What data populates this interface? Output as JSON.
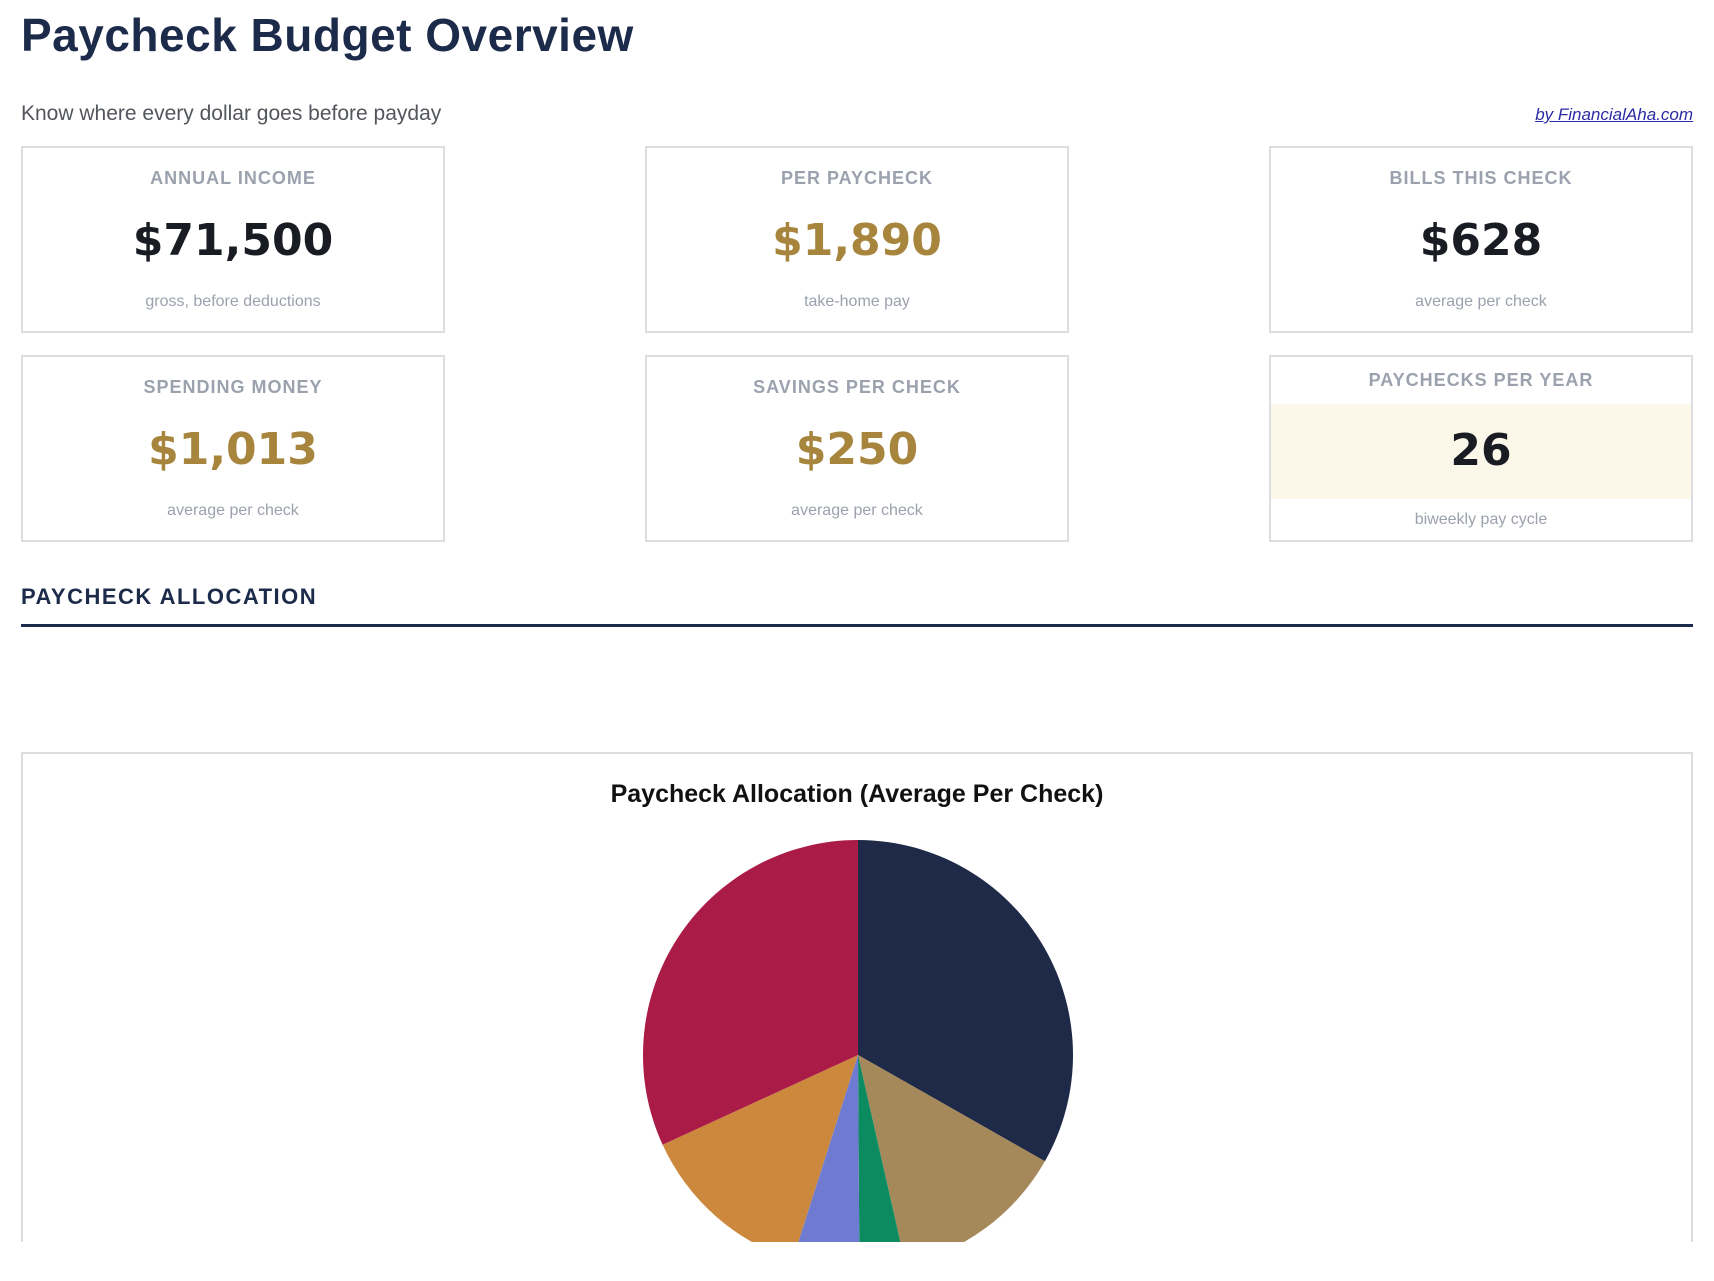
{
  "page": {
    "title": "Paycheck Budget Overview",
    "subtitle": "Know where every dollar goes before payday",
    "attribution": "by FinancialAha.com"
  },
  "stats": {
    "cards": [
      {
        "label": "ANNUAL INCOME",
        "value": "$71,500",
        "caption": "gross, before deductions"
      },
      {
        "label": "PER PAYCHECK",
        "value": "$1,890",
        "caption": "take-home pay"
      },
      {
        "label": "BILLS THIS CHECK",
        "value": "$628",
        "caption": "average per check"
      },
      {
        "label": "SPENDING MONEY",
        "value": "$1,013",
        "caption": "average per check"
      },
      {
        "label": "SAVINGS PER CHECK",
        "value": "$250",
        "caption": "average per check"
      },
      {
        "label": "PAYCHECKS PER YEAR",
        "value": "26",
        "caption": "biweekly pay cycle"
      }
    ]
  },
  "section": {
    "heading": "PAYCHECK ALLOCATION"
  },
  "chart_data": {
    "type": "pie",
    "title": "Paycheck Allocation (Average Per Check)",
    "total": 1890,
    "start_angle": "12 o'clock",
    "direction": "clockwise",
    "labels_visible": false,
    "clipped_at_bottom": true,
    "segments": [
      {
        "name": "segment-1",
        "value": 628,
        "color": "#1e2a47"
      },
      {
        "name": "segment-2",
        "value": 250,
        "color": "#a5895a"
      },
      {
        "name": "segment-3",
        "value": 65,
        "color": "#0d8b60"
      },
      {
        "name": "segment-4",
        "value": 95,
        "color": "#6f7bd0"
      },
      {
        "name": "segment-5",
        "value": 250,
        "color": "#cc893e"
      },
      {
        "name": "segment-6",
        "value": 602,
        "color": "#aa1b47"
      }
    ],
    "radius_px": 215
  },
  "colors": {
    "accent_navy": "#1c2b4a",
    "gold": "#a7853d",
    "muted_gray": "#9ba1ad",
    "card_border": "#dcdee1",
    "highlight_bg": "#fbf7e9",
    "link_blue": "#2b2ba5"
  }
}
